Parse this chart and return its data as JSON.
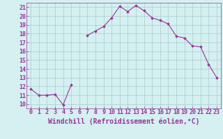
{
  "x": [
    0,
    1,
    2,
    3,
    4,
    5,
    6,
    7,
    8,
    9,
    10,
    11,
    12,
    13,
    14,
    15,
    16,
    17,
    18,
    19,
    20,
    21,
    22,
    23
  ],
  "y": [
    11.7,
    11.0,
    11.0,
    11.1,
    9.9,
    12.2,
    null,
    17.8,
    18.3,
    18.8,
    19.8,
    21.1,
    20.5,
    21.2,
    20.6,
    19.8,
    19.5,
    19.1,
    17.7,
    17.5,
    16.6,
    16.5,
    14.5,
    13.0
  ],
  "line_color": "#993399",
  "marker": "D",
  "marker_size": 2.0,
  "background_color": "#d4f0f0",
  "grid_color": "#aacccc",
  "xlabel": "Windchill (Refroidissement éolien,°C)",
  "xlim": [
    -0.5,
    23.5
  ],
  "ylim": [
    9.5,
    21.5
  ],
  "xticks": [
    0,
    1,
    2,
    3,
    4,
    5,
    6,
    7,
    8,
    9,
    10,
    11,
    12,
    13,
    14,
    15,
    16,
    17,
    18,
    19,
    20,
    21,
    22,
    23
  ],
  "yticks": [
    10,
    11,
    12,
    13,
    14,
    15,
    16,
    17,
    18,
    19,
    20,
    21
  ],
  "tick_color": "#993399",
  "label_color": "#993399",
  "xlabel_fontsize": 7.0,
  "tick_fontsize": 6.0,
  "linewidth": 0.8
}
